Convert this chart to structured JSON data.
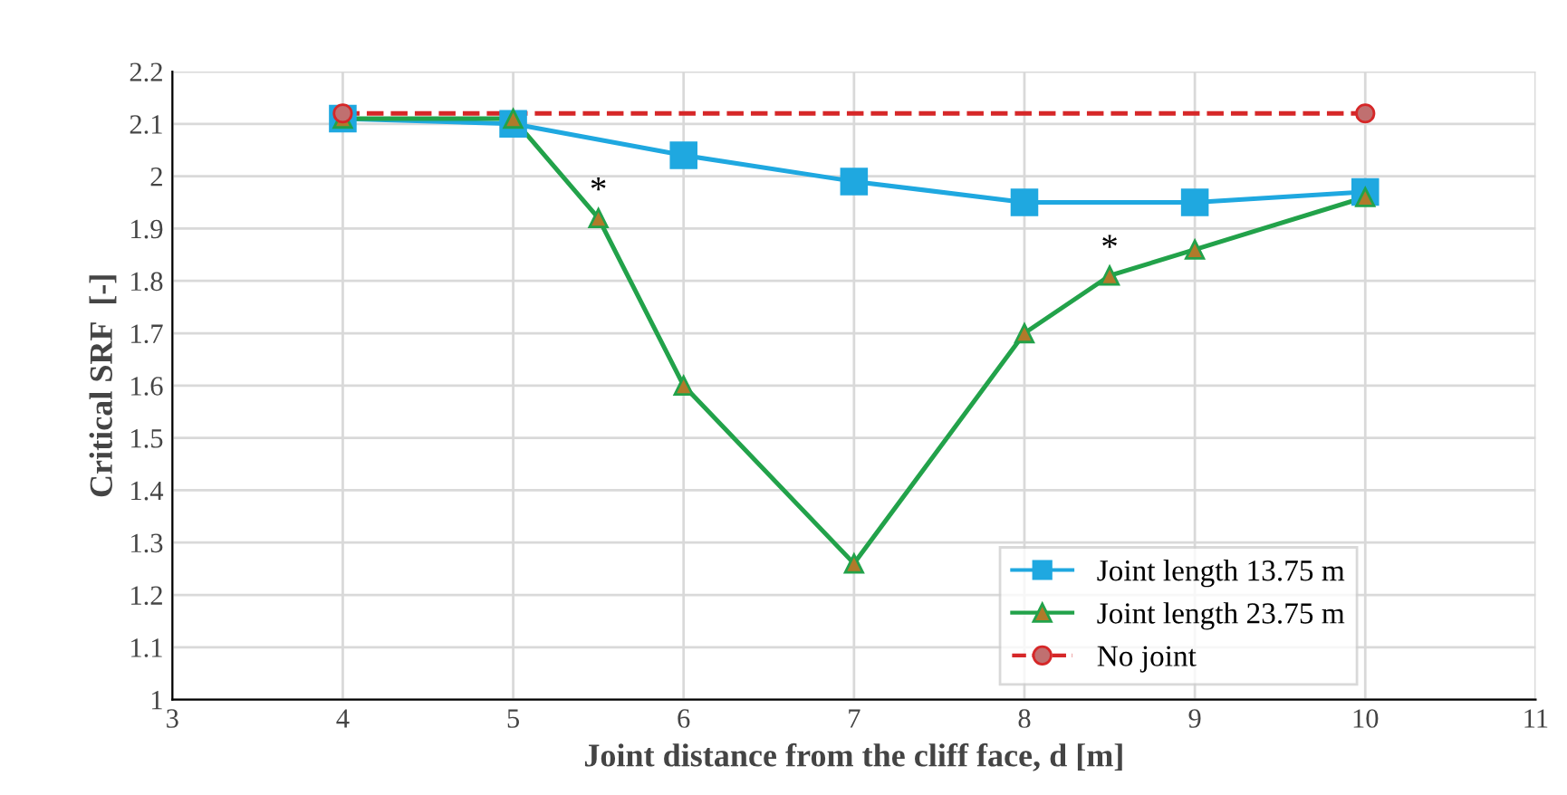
{
  "chart_data": {
    "type": "line",
    "xlabel": "Joint distance from the cliff face, d [m]",
    "ylabel": "Critical SRF  [-]",
    "xlim": [
      3,
      11
    ],
    "xticks": [
      3,
      4,
      5,
      6,
      7,
      8,
      9,
      10,
      11
    ],
    "ylim": [
      1,
      2.2
    ],
    "yticks": [
      1,
      1.1,
      1.2,
      1.3,
      1.4,
      1.5,
      1.6,
      1.7,
      1.8,
      1.9,
      2,
      2.1,
      2.2
    ],
    "grid": true,
    "legend": "bottom right",
    "series": [
      {
        "name": "Joint length 13.75 m",
        "color": "#1fa8e0",
        "marker": "square",
        "line_style": "solid",
        "x": [
          4,
          5,
          6,
          7,
          8,
          9,
          10
        ],
        "values": [
          2.11,
          2.1,
          2.04,
          1.99,
          1.95,
          1.95,
          1.97
        ]
      },
      {
        "name": "Joint length 23.75 m",
        "color": "#22a24a",
        "marker": "triangle",
        "line_style": "solid",
        "x": [
          4,
          5,
          5.5,
          6,
          7,
          8,
          8.5,
          9,
          10
        ],
        "values": [
          2.11,
          2.11,
          1.92,
          1.6,
          1.26,
          1.7,
          1.81,
          1.86,
          1.96
        ]
      },
      {
        "name": "No joint",
        "color": "#d62728",
        "marker": "circle",
        "line_style": "dashed",
        "x": [
          4,
          10
        ],
        "values": [
          2.12,
          2.12
        ]
      }
    ],
    "annotations": [
      {
        "text": "*",
        "x": 5.5,
        "y": 1.92
      },
      {
        "text": "*",
        "x": 8.5,
        "y": 1.81
      }
    ]
  }
}
